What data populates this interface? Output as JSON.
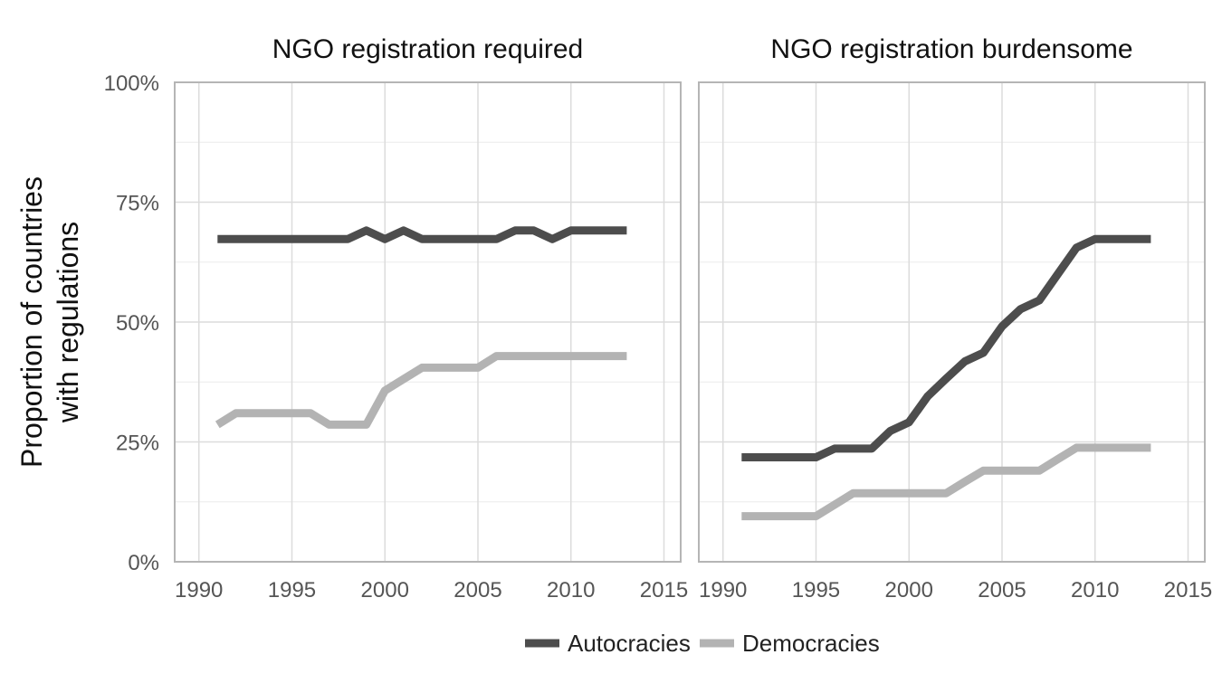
{
  "chart_data": {
    "type": "line",
    "ylabel": [
      "Proportion of countries",
      "with regulations"
    ],
    "ylim": [
      0,
      100
    ],
    "yticks": [
      0,
      25,
      50,
      75,
      100
    ],
    "ytick_labels": [
      "0%",
      "25%",
      "50%",
      "75%",
      "100%"
    ],
    "xlim": [
      1988.7,
      2015.9
    ],
    "xticks": [
      1990,
      1995,
      2000,
      2005,
      2010,
      2015
    ],
    "xtick_labels": [
      "1990",
      "1995",
      "2000",
      "2005",
      "2010",
      "2015"
    ],
    "grid": true,
    "legend": {
      "position": "bottom",
      "entries": [
        {
          "name": "Autocracies",
          "color": "#4d4d4d"
        },
        {
          "name": "Democracies",
          "color": "#b3b3b3"
        }
      ]
    },
    "panels": [
      {
        "title": "NGO registration required",
        "x": [
          1991,
          1992,
          1993,
          1994,
          1995,
          1996,
          1997,
          1998,
          1999,
          2000,
          2001,
          2002,
          2003,
          2004,
          2005,
          2006,
          2007,
          2008,
          2009,
          2010,
          2011,
          2012,
          2013
        ],
        "series": [
          {
            "name": "Autocracies",
            "color": "#4d4d4d",
            "values": [
              67.3,
              67.3,
              67.3,
              67.3,
              67.3,
              67.3,
              67.3,
              67.3,
              69.1,
              67.3,
              69.1,
              67.3,
              67.3,
              67.3,
              67.3,
              67.3,
              69.1,
              69.1,
              67.3,
              69.1,
              69.1,
              69.1,
              69.1
            ]
          },
          {
            "name": "Democracies",
            "color": "#b3b3b3",
            "values": [
              28.6,
              31.0,
              31.0,
              31.0,
              31.0,
              31.0,
              28.6,
              28.6,
              28.6,
              35.7,
              38.1,
              40.5,
              40.5,
              40.5,
              40.5,
              42.9,
              42.9,
              42.9,
              42.9,
              42.9,
              42.9,
              42.9,
              42.9
            ]
          }
        ]
      },
      {
        "title": "NGO registration burdensome",
        "x": [
          1991,
          1992,
          1993,
          1994,
          1995,
          1996,
          1997,
          1998,
          1999,
          2000,
          2001,
          2002,
          2003,
          2004,
          2005,
          2006,
          2007,
          2008,
          2009,
          2010,
          2011,
          2012,
          2013
        ],
        "series": [
          {
            "name": "Autocracies",
            "color": "#4d4d4d",
            "values": [
              21.8,
              21.8,
              21.8,
              21.8,
              21.8,
              23.6,
              23.6,
              23.6,
              27.3,
              29.1,
              34.5,
              38.2,
              41.8,
              43.6,
              49.1,
              52.7,
              54.5,
              60.0,
              65.5,
              67.3,
              67.3,
              67.3,
              67.3
            ]
          },
          {
            "name": "Democracies",
            "color": "#b3b3b3",
            "values": [
              9.5,
              9.5,
              9.5,
              9.5,
              9.5,
              11.9,
              14.3,
              14.3,
              14.3,
              14.3,
              14.3,
              14.3,
              16.7,
              19.0,
              19.0,
              19.0,
              19.0,
              21.4,
              23.8,
              23.8,
              23.8,
              23.8,
              23.8
            ]
          }
        ]
      }
    ]
  }
}
